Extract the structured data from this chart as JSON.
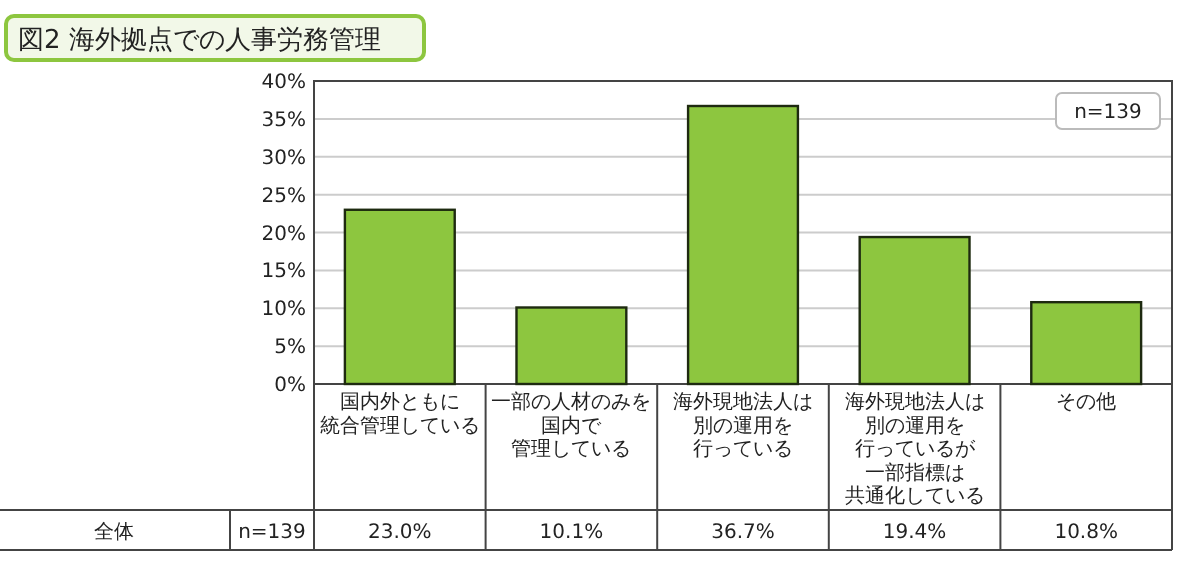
{
  "chart_data": {
    "type": "bar",
    "title": "図2 海外拠点での人事労務管理",
    "categories": [
      "国内外ともに統合管理している",
      "一部の人材のみを国内で管理している",
      "海外現地法人は別の運用を行っている",
      "海外現地法人は別の運用を行っているが一部指標は共通化している",
      "その他"
    ],
    "values": [
      23.0,
      10.1,
      36.7,
      19.4,
      10.8
    ],
    "value_labels": [
      "23.0%",
      "10.1%",
      "36.7%",
      "19.4%",
      "10.8%"
    ],
    "color": "#8dc63f",
    "ylim": [
      0,
      40
    ],
    "yticks": [
      {
        "value": 0,
        "label": "0%"
      },
      {
        "value": 5,
        "label": "5%"
      },
      {
        "value": 10,
        "label": "10%"
      },
      {
        "value": 15,
        "label": "15%"
      },
      {
        "value": 20,
        "label": "20%"
      },
      {
        "value": 25,
        "label": "25%"
      },
      {
        "value": 30,
        "label": "30%"
      },
      {
        "value": 35,
        "label": "35%"
      },
      {
        "value": 40,
        "label": "40%"
      }
    ],
    "grid": "y",
    "annotations": [
      "n=139",
      "全体",
      "n=139"
    ]
  }
}
